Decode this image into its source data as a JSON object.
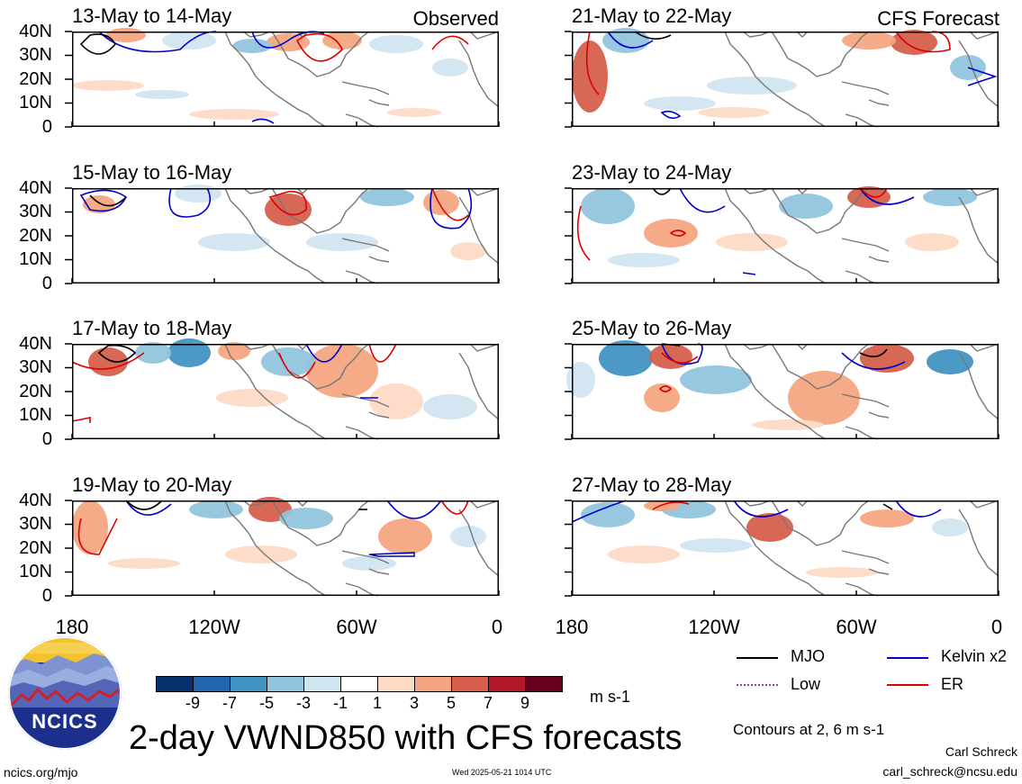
{
  "header": {
    "left_label": "Observed",
    "right_label": "CFS Forecast"
  },
  "panels": [
    {
      "id": "p1",
      "title": "13-May to 14-May"
    },
    {
      "id": "p2",
      "title": "15-May to 16-May"
    },
    {
      "id": "p3",
      "title": "17-May to 18-May"
    },
    {
      "id": "p4",
      "title": "19-May to 20-May"
    },
    {
      "id": "p5",
      "title": "21-May to 22-May"
    },
    {
      "id": "p6",
      "title": "23-May to 24-May"
    },
    {
      "id": "p7",
      "title": "25-May to 26-May"
    },
    {
      "id": "p8",
      "title": "27-May to 28-May"
    }
  ],
  "axes": {
    "y_ticks": [
      "40N",
      "30N",
      "20N",
      "10N",
      "0"
    ],
    "x_ticks": [
      "180",
      "120W",
      "60W",
      "0"
    ]
  },
  "colorbar": {
    "labels": [
      "-9",
      "-7",
      "-5",
      "-3",
      "-1",
      "1",
      "3",
      "5",
      "7",
      "9"
    ],
    "colors": [
      "#08306b",
      "#2166ac",
      "#4393c3",
      "#92c5de",
      "#d1e5f0",
      "#ffffff",
      "#fddbc7",
      "#f4a582",
      "#d6604d",
      "#b2182b",
      "#67001f"
    ],
    "units": "m s-1"
  },
  "legend": {
    "items": [
      {
        "label": "MJO",
        "color": "#000000"
      },
      {
        "label": "Kelvin x2",
        "color": "#0000cc"
      },
      {
        "label": "Low",
        "color": "#9933cc"
      },
      {
        "label": "ER",
        "color": "#dd0000"
      }
    ],
    "contours_note": "Contours at 2, 6 m s-1"
  },
  "footer": {
    "main_title": "2-day VWND850 with CFS forecasts",
    "logo_text": "NCICS",
    "url": "ncics.org/mjo",
    "timestamp": "Wed 2025-05-21 1014 UTC",
    "author": "Carl Schreck",
    "email": "carl_schreck@ncsu.edu"
  }
}
